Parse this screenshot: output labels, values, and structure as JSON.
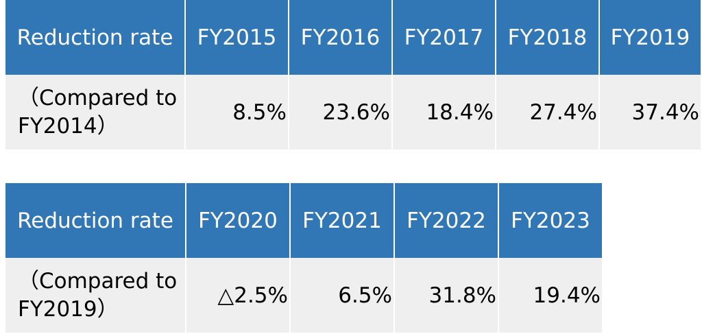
{
  "table_top": {
    "header_label": "Reduction rate",
    "row_label_line1": "（Compared to",
    "row_label_line2": "FY2014）",
    "years": [
      "FY2015",
      "FY2016",
      "FY2017",
      "FY2018",
      "FY2019"
    ],
    "values": [
      "8.5%",
      "23.6%",
      "18.4%",
      "27.4%",
      "37.4%"
    ]
  },
  "table_bottom": {
    "header_label": "Reduction rate",
    "row_label_line1": "（Compared to",
    "row_label_line2": "FY2019）",
    "years": [
      "FY2020",
      "FY2021",
      "FY2022",
      "FY2023"
    ],
    "values": [
      "△2.5%",
      "6.5%",
      "31.8%",
      "19.4%"
    ]
  },
  "colors": {
    "header_bg": "#3277b5",
    "row_bg": "#efefef",
    "header_text": "#ffffff"
  }
}
